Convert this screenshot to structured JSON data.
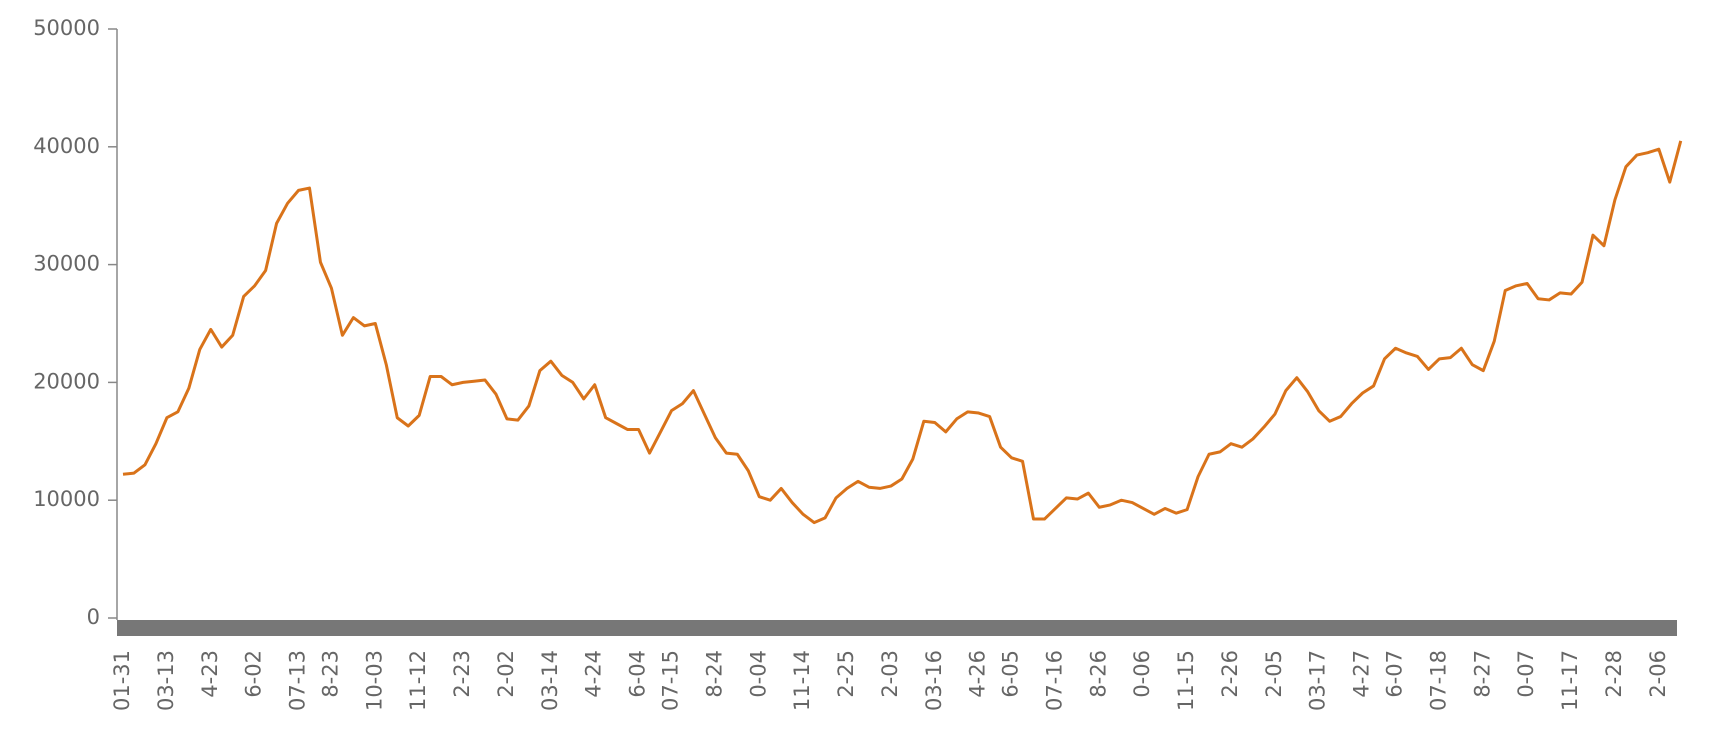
{
  "chart_data": {
    "type": "line",
    "color": "#d9731a",
    "categories": [
      "01-31",
      null,
      null,
      null,
      "03-13",
      null,
      null,
      null,
      "4-23",
      null,
      null,
      null,
      "6-02",
      null,
      null,
      null,
      "07-13",
      null,
      null,
      "8-23",
      null,
      null,
      null,
      "10-03",
      null,
      null,
      null,
      "11-12",
      null,
      null,
      null,
      "2-23",
      null,
      null,
      null,
      "2-02",
      null,
      null,
      null,
      "03-14",
      null,
      null,
      null,
      "4-24",
      null,
      null,
      null,
      "6-04",
      null,
      null,
      "07-15",
      null,
      null,
      null,
      "8-24",
      null,
      null,
      null,
      "0-04",
      null,
      null,
      null,
      "11-14",
      null,
      null,
      null,
      "2-25",
      null,
      null,
      null,
      "2-03",
      null,
      null,
      null,
      "03-16",
      null,
      null,
      null,
      "4-26",
      null,
      null,
      "6-05",
      null,
      null,
      null,
      "07-16",
      null,
      null,
      null,
      "8-26",
      null,
      null,
      null,
      "0-06",
      null,
      null,
      null,
      "11-15",
      null,
      null,
      null,
      "2-26",
      null,
      null,
      null,
      "2-05",
      null,
      null,
      null,
      "03-17",
      null,
      null,
      null,
      "4-27",
      null,
      null,
      "6-07",
      null,
      null,
      null,
      "07-18",
      null,
      null,
      null,
      "8-27",
      null,
      null,
      null,
      "0-07",
      null,
      null,
      null,
      "11-17",
      null,
      null,
      null,
      "2-28",
      null,
      null,
      null,
      "2-06",
      null,
      null
    ],
    "values": [
      12200,
      12300,
      13000,
      14800,
      17000,
      17500,
      19500,
      22800,
      24500,
      23000,
      24000,
      27300,
      28200,
      29500,
      33500,
      35200,
      36300,
      36500,
      30200,
      28000,
      24000,
      25500,
      24800,
      25000,
      21500,
      17000,
      16300,
      17200,
      20500,
      20500,
      19800,
      20000,
      20100,
      20200,
      19000,
      16900,
      16800,
      18000,
      21000,
      21800,
      20600,
      20000,
      18600,
      19800,
      17000,
      16500,
      16000,
      16000,
      14000,
      15800,
      17600,
      18200,
      19300,
      17300,
      15300,
      14000,
      13900,
      12500,
      10300,
      10000,
      11000,
      9800,
      8800,
      8100,
      8500,
      10200,
      11000,
      11600,
      11100,
      11000,
      11200,
      11800,
      13500,
      16700,
      16600,
      15800,
      16900,
      17500,
      17400,
      17100,
      14500,
      13600,
      13300,
      8400,
      8400,
      9300,
      10200,
      10100,
      10600,
      9400,
      9600,
      10000,
      9800,
      9300,
      8800,
      9300,
      8900,
      9200,
      12000,
      13900,
      14100,
      14800,
      14500,
      15200,
      16200,
      17300,
      19300,
      20400,
      19200,
      17600,
      16700,
      17100,
      18200,
      19100,
      19700,
      22000,
      22900,
      22500,
      22200,
      21100,
      22000,
      22100,
      22900,
      21500,
      21000,
      23500,
      27800,
      28200,
      28400,
      27100,
      27000,
      27600,
      27500,
      28500,
      32500,
      31600,
      35500,
      38300,
      39300,
      39500,
      39800,
      37000,
      40500
    ],
    "ylim": [
      0,
      50000
    ],
    "yticks": [
      0,
      10000,
      20000,
      30000,
      40000,
      50000
    ]
  }
}
